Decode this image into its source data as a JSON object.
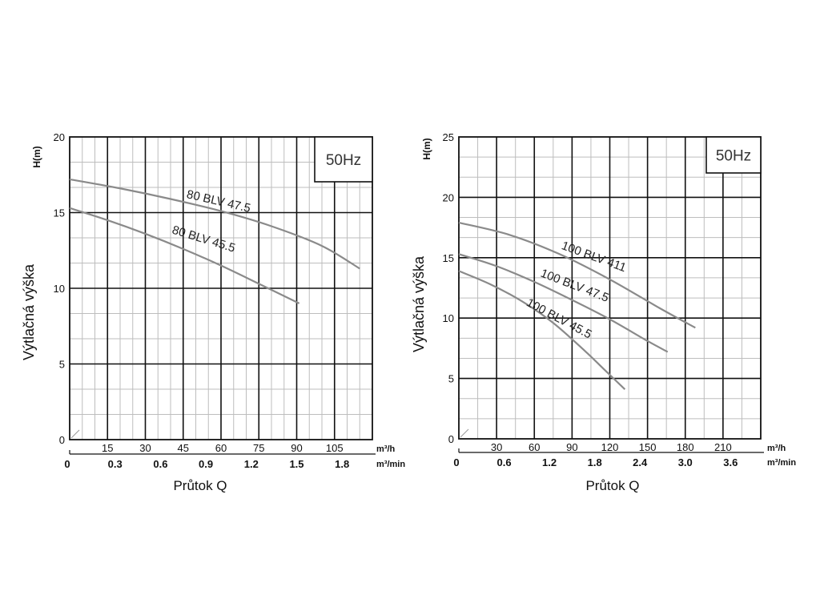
{
  "chart_data": [
    {
      "type": "line",
      "badge": "50Hz",
      "ylabel": "Výtlačná výška",
      "yunit_label": "H(m)",
      "xlabel": "Průtok Q",
      "unit_m3h": "m³/h",
      "unit_m3min": "m³/min",
      "ylim": [
        0,
        20
      ],
      "yticks": [
        "0",
        "5",
        "10",
        "15",
        "20"
      ],
      "xlim_m3h": [
        0,
        120
      ],
      "xticks_m3h": [
        "15",
        "30",
        "45",
        "60",
        "75",
        "90",
        "105"
      ],
      "xticks_m3h_values": [
        15,
        30,
        45,
        60,
        75,
        90,
        105
      ],
      "xticks_m3min": [
        "0",
        "0.3",
        "0.6",
        "0.9",
        "1.2",
        "1.5",
        "1.8"
      ],
      "xticks_m3min_values": [
        0,
        0.3,
        0.6,
        0.9,
        1.2,
        1.5,
        1.8
      ],
      "grid": true,
      "series": [
        {
          "name": "80 BLV 47.5",
          "x": [
            0,
            20,
            40,
            60,
            80,
            100,
            115
          ],
          "y": [
            17.2,
            16.6,
            15.9,
            15.1,
            14.1,
            12.8,
            11.3
          ]
        },
        {
          "name": "80 BLV 45.5",
          "x": [
            0,
            15,
            30,
            45,
            60,
            75,
            91
          ],
          "y": [
            15.3,
            14.5,
            13.6,
            12.6,
            11.5,
            10.3,
            9.0
          ]
        }
      ]
    },
    {
      "type": "line",
      "badge": "50Hz",
      "ylabel": "Výtlačná výška",
      "yunit_label": "H(m)",
      "xlabel": "Průtok Q",
      "unit_m3h": "m³/h",
      "unit_m3min": "m³/min",
      "ylim": [
        0,
        25
      ],
      "yticks": [
        "0",
        "5",
        "10",
        "15",
        "20",
        "25"
      ],
      "xlim_m3h": [
        0,
        240
      ],
      "xticks_m3h": [
        "30",
        "60",
        "90",
        "120",
        "150",
        "180",
        "210"
      ],
      "xticks_m3h_values": [
        30,
        60,
        90,
        120,
        150,
        180,
        210
      ],
      "xticks_m3min": [
        "0",
        "0.6",
        "1.2",
        "1.8",
        "2.4",
        "3.0",
        "3.6"
      ],
      "xticks_m3min_values": [
        0,
        0.6,
        1.2,
        1.8,
        2.4,
        3.0,
        3.6
      ],
      "grid": true,
      "series": [
        {
          "name": "100 BLV 411",
          "x": [
            0,
            40,
            80,
            120,
            160,
            188
          ],
          "y": [
            17.9,
            16.9,
            15.3,
            13.2,
            10.8,
            9.2
          ]
        },
        {
          "name": "100 BLV 47.5",
          "x": [
            0,
            30,
            60,
            90,
            120,
            150,
            166
          ],
          "y": [
            15.3,
            14.3,
            13.0,
            11.5,
            9.9,
            8.1,
            7.2
          ]
        },
        {
          "name": "100 BLV 45.5",
          "x": [
            0,
            25,
            50,
            75,
            100,
            115,
            132
          ],
          "y": [
            13.9,
            12.8,
            11.4,
            9.6,
            7.3,
            5.8,
            4.1
          ]
        }
      ]
    }
  ]
}
